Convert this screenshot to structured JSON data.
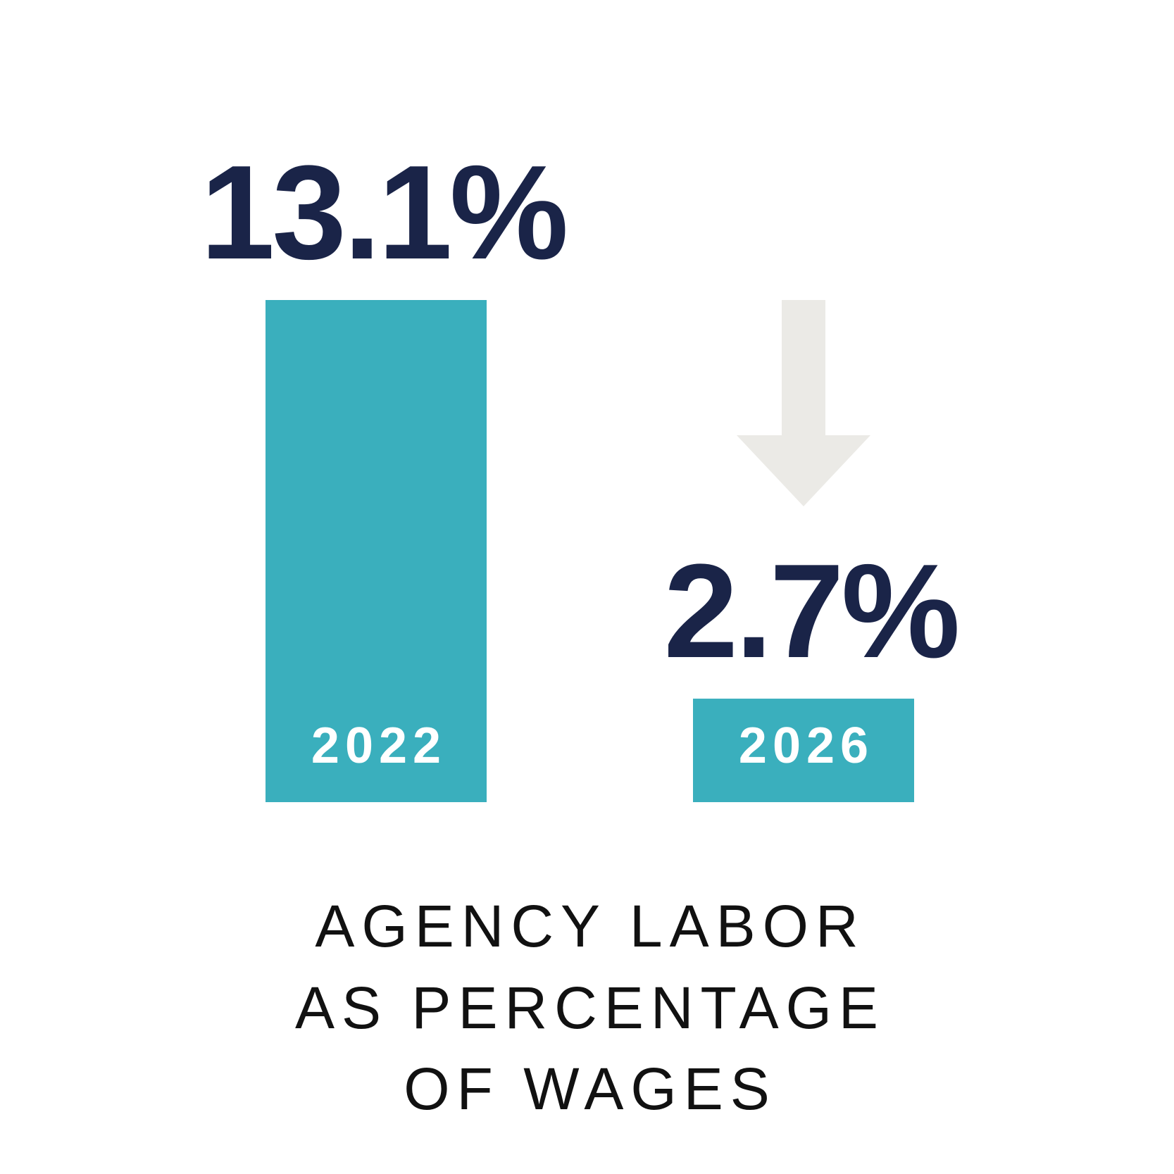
{
  "chart_data": {
    "type": "bar",
    "title": [
      "AGENCY LABOR",
      "AS PERCENTAGE",
      "OF WAGES"
    ],
    "categories": [
      "2022",
      "2026"
    ],
    "values": [
      13.1,
      2.7
    ],
    "value_labels": [
      "13.1%",
      "2.7%"
    ],
    "color": "#3aafbd"
  }
}
